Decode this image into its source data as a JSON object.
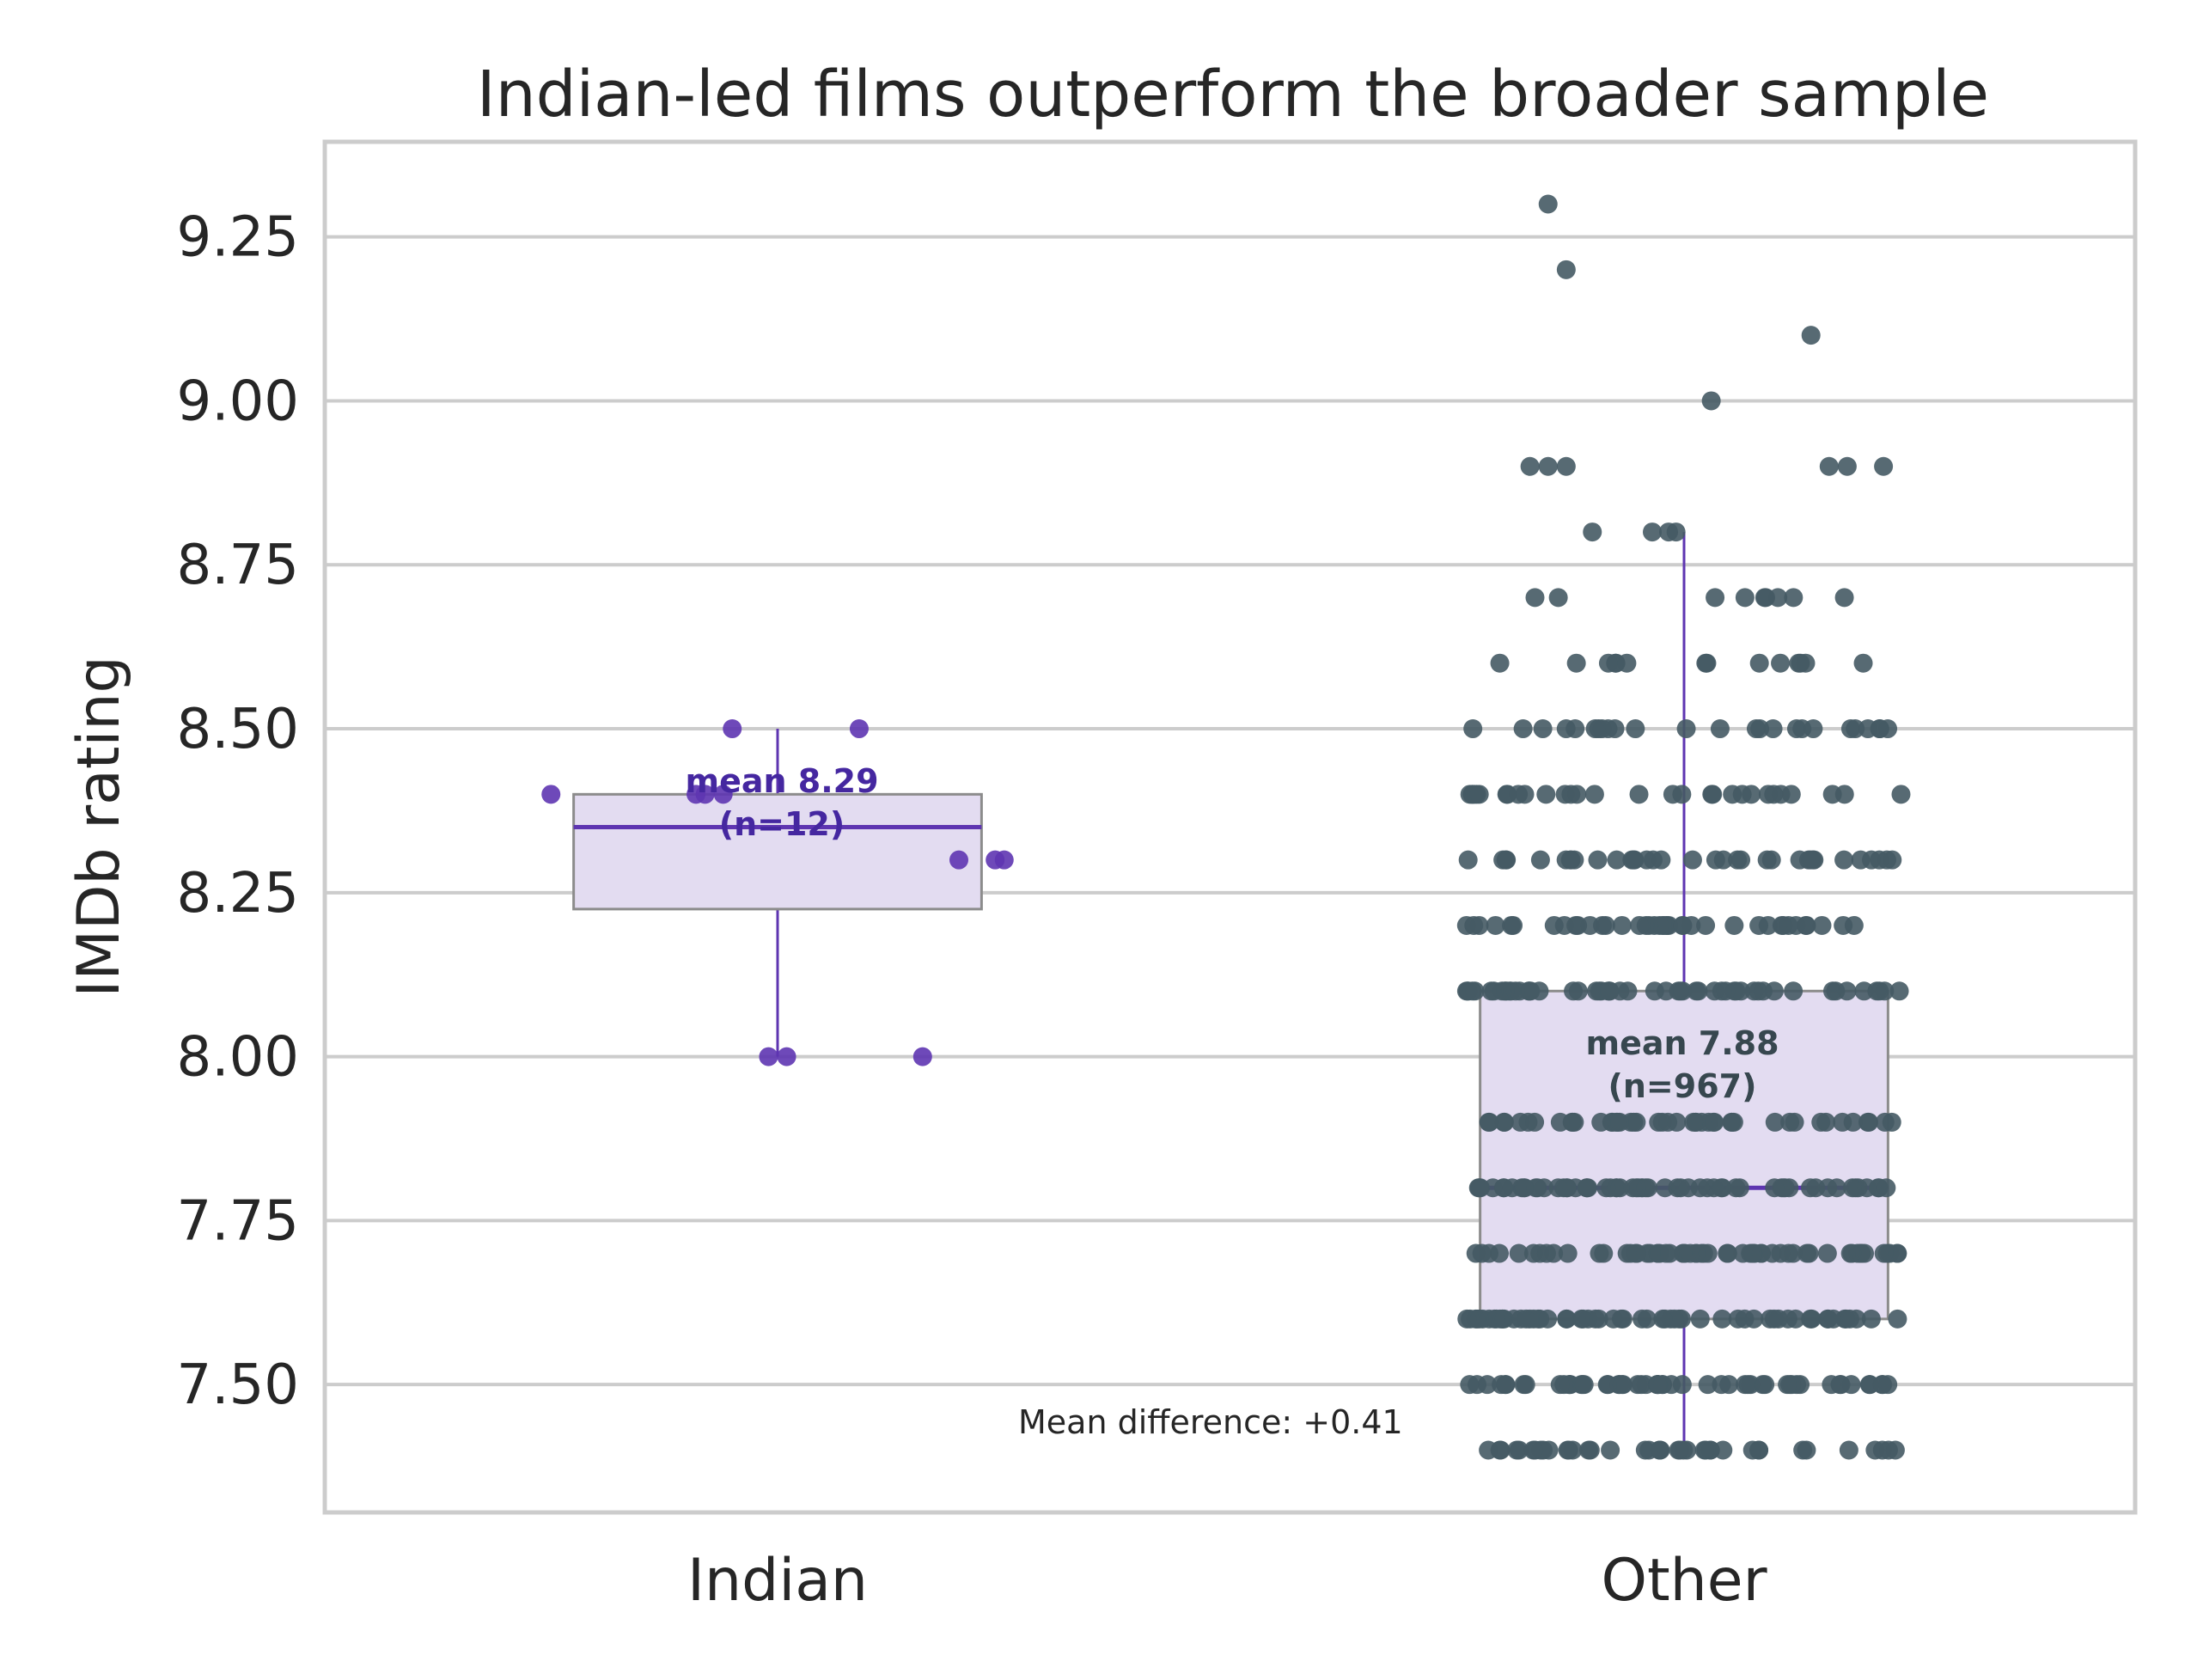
{
  "chart_data": {
    "type": "box",
    "title": "Indian-led films outperform the broader sample",
    "xlabel": "",
    "ylabel": "IMDb rating",
    "ylim": [
      7.305,
      9.395
    ],
    "yticks": [
      "7.50",
      "7.75",
      "8.00",
      "8.25",
      "8.50",
      "8.75",
      "9.00",
      "9.25"
    ],
    "grid": true,
    "categories": [
      "Indian",
      "Other"
    ],
    "series": [
      {
        "category": "Indian",
        "box": {
          "whislo": 8.0,
          "q1": 8.225,
          "med": 8.35,
          "q3": 8.4,
          "whishi": 8.5
        },
        "mean_label": "mean 8.29",
        "n_label": "(n=12)",
        "points": [
          [
            -0.25,
            8.4
          ],
          [
            -0.05,
            8.5
          ],
          [
            0.09,
            8.5
          ],
          [
            -0.09,
            8.4
          ],
          [
            -0.06,
            8.4
          ],
          [
            -0.08,
            8.4
          ],
          [
            0.2,
            8.3
          ],
          [
            0.24,
            8.3
          ],
          [
            0.25,
            8.3
          ],
          [
            -0.01,
            8.0
          ],
          [
            0.01,
            8.0
          ],
          [
            0.16,
            8.0
          ]
        ]
      },
      {
        "category": "Other",
        "box": {
          "whislo": 7.4,
          "q1": 7.6,
          "med": 7.8,
          "q3": 8.1,
          "whishi": 8.8
        },
        "mean_label": "mean 7.88",
        "n_label": "(n=967)",
        "outliers": [
          [
            -0.15,
            9.3
          ],
          [
            -0.13,
            9.2
          ],
          [
            0.14,
            9.1
          ],
          [
            0.03,
            9.0
          ],
          [
            -0.17,
            8.9
          ],
          [
            -0.13,
            8.9
          ],
          [
            -0.15,
            8.9
          ],
          [
            0.16,
            8.9
          ],
          [
            0.18,
            8.9
          ],
          [
            0.22,
            8.9
          ]
        ],
        "points_note": "dense jittered strip of points at every 0.1 step from 7.4 to 8.8"
      }
    ],
    "annotation": "Mean difference: +0.41",
    "colors": {
      "accent": "#5e35b1",
      "indian_points": "#5e35b1",
      "indian_text": "#4527a0",
      "other_points": "#455a64",
      "other_text": "#37474f",
      "box_fill": "#e3dcf1",
      "box_edge": "#8c8c8c",
      "grid": "#cccccc",
      "frame": "#cccccc"
    }
  }
}
